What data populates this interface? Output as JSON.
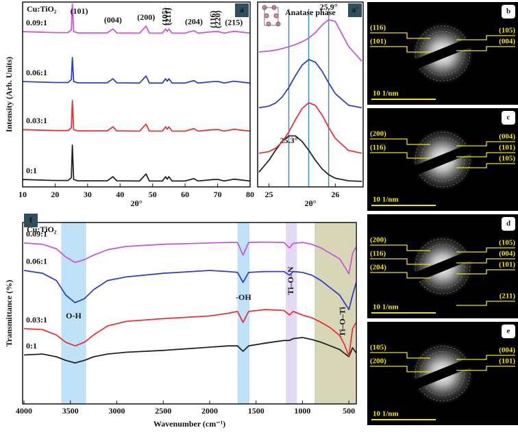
{
  "chart_data": [
    {
      "type": "line",
      "panel_label": "a",
      "header": "Cu:TiO₂",
      "xlabel": "2θ°",
      "ylabel": "Intensity (Arb. Units)",
      "x": [
        10,
        20,
        24,
        25,
        25.3,
        25.7,
        27,
        30,
        36,
        37.8,
        39,
        46,
        48,
        49,
        53,
        54,
        54.5,
        55,
        56,
        60,
        62.7,
        64,
        68.8,
        70.3,
        72,
        75,
        80
      ],
      "xlim": [
        10,
        80
      ],
      "ylim": [
        0,
        100
      ],
      "xticks": [
        10,
        20,
        30,
        40,
        50,
        60,
        70,
        80
      ],
      "series_labels": true,
      "series": [
        {
          "name": "0:1",
          "color": "#222222",
          "values": [
            4,
            3.5,
            3.5,
            5,
            22.6,
            4,
            3.3,
            3.3,
            3.3,
            5.5,
            3.3,
            3.2,
            7,
            3.2,
            3.2,
            5.5,
            4.2,
            5.5,
            3.2,
            3.2,
            4.5,
            3.2,
            4,
            4,
            3.2,
            4.2,
            3.2
          ]
        },
        {
          "name": "0.03:1",
          "color": "#e8313a",
          "values": [
            31,
            30.5,
            30.5,
            32,
            46.7,
            31,
            30.3,
            30.3,
            30.3,
            32.5,
            30.3,
            30.2,
            34,
            30.2,
            30.2,
            32.5,
            31.2,
            32.5,
            30.2,
            30.2,
            31.5,
            30.2,
            31,
            31,
            30.2,
            31.2,
            30.2
          ]
        },
        {
          "name": "0.06:1",
          "color": "#2e3fc8",
          "values": [
            57,
            56.5,
            56.5,
            58,
            70,
            57,
            56.3,
            56.3,
            56.3,
            58.5,
            56.3,
            56.2,
            60,
            56.2,
            56.2,
            58.5,
            57.2,
            58.5,
            56.2,
            56.2,
            57.5,
            56.2,
            57,
            57,
            56.2,
            57.2,
            56.2
          ]
        },
        {
          "name": "0.09:1",
          "color": "#c757d6",
          "values": [
            84,
            83.5,
            83.5,
            85,
            99,
            84,
            83.3,
            83.3,
            83.3,
            85.5,
            83.3,
            83.2,
            87,
            83.2,
            83.2,
            85.5,
            84.2,
            85.5,
            83.2,
            83.2,
            84.5,
            83.2,
            84,
            84,
            83.2,
            84.2,
            83.2
          ]
        }
      ],
      "annotations": [
        {
          "text": "(101)",
          "x": 25.3,
          "vertical": false
        },
        {
          "text": "(004)",
          "x": 37.8,
          "vertical": false
        },
        {
          "text": "(200)",
          "x": 48,
          "vertical": false
        },
        {
          "text": "(105)",
          "x": 54,
          "vertical": true
        },
        {
          "text": "(211)",
          "x": 55,
          "vertical": true
        },
        {
          "text": "(204)",
          "x": 62.7,
          "vertical": false
        },
        {
          "text": "(116)",
          "x": 68.8,
          "vertical": true
        },
        {
          "text": "(220)",
          "x": 70.3,
          "vertical": true
        },
        {
          "text": "(215)",
          "x": 75,
          "vertical": false
        }
      ]
    },
    {
      "type": "line",
      "panel_label": "a'",
      "xlabel": "2θ°",
      "inset_label": "Anatase phase",
      "x": [
        24.85,
        25.0,
        25.1,
        25.2,
        25.3,
        25.4,
        25.5,
        25.6,
        25.7,
        25.8,
        25.9,
        26.0,
        26.2,
        26.4
      ],
      "xlim": [
        24.83,
        26.42
      ],
      "ylim": [
        0,
        100
      ],
      "xticks": [
        25,
        26
      ],
      "series_labels": false,
      "reference_lines": [
        25.3,
        25.6,
        25.9
      ],
      "reference_line_labels": [
        "25.3°",
        null,
        "25.9°"
      ],
      "reference_color": "#3b8fd0",
      "series": [
        {
          "name": "0:1",
          "color": "#222222",
          "values": [
            8,
            14.4,
            19.8,
            24.6,
            27.6,
            27.6,
            24.6,
            19.8,
            14.4,
            9.8,
            6.6,
            4.7,
            3.3,
            3
          ]
        },
        {
          "name": "0.03:1",
          "color": "#e8313a",
          "values": [
            18.2,
            19.1,
            20.9,
            24.3,
            29.7,
            36.4,
            42.4,
            45.5,
            44.1,
            39,
            32.3,
            26.3,
            19.7,
            18.2
          ]
        },
        {
          "name": "0.06:1",
          "color": "#2e3fc8",
          "values": [
            42.8,
            43.7,
            45.4,
            48.6,
            53.8,
            60.2,
            65.9,
            68.9,
            67.5,
            62.7,
            56.3,
            50.5,
            44.2,
            42.8
          ]
        },
        {
          "name": "0.09:1",
          "color": "#c757d6",
          "values": [
            73,
            73.5,
            74,
            74.8,
            75.8,
            77,
            78.5,
            80.5,
            83.5,
            87.5,
            90.5,
            89.5,
            76,
            68
          ]
        }
      ]
    },
    {
      "type": "line",
      "panel_label": "f",
      "header": "Cu:TiO₂",
      "xlabel": "Wavenumber (cm⁻¹)",
      "ylabel": "Transmittance (%)",
      "x": [
        4000,
        3800,
        3650,
        3550,
        3450,
        3350,
        3250,
        3100,
        2900,
        2500,
        2000,
        1800,
        1700,
        1640,
        1580,
        1400,
        1200,
        1140,
        1100,
        1000,
        900,
        800,
        700,
        600,
        550,
        500,
        460,
        420
      ],
      "xlim": [
        4015,
        420
      ],
      "ylim": [
        0,
        100
      ],
      "xticks": [
        4000,
        3500,
        3000,
        2500,
        2000,
        1500,
        1000,
        500
      ],
      "series_labels": true,
      "bands": [
        {
          "range": [
            3600,
            3330
          ],
          "label": "O-H",
          "color": "#a9d8f5"
        },
        {
          "range": [
            1700,
            1570
          ],
          "label": "-OH",
          "color": "#a9d8f5"
        },
        {
          "range": [
            1180,
            1060
          ],
          "label": "Ti–O–N",
          "color": "#dccdf0"
        },
        {
          "range": [
            870,
            430
          ],
          "label": "Ti–O–Ti",
          "color": "#c9c9a0"
        }
      ],
      "series": [
        {
          "name": "0:1",
          "color": "#222222",
          "values": [
            27,
            27.5,
            26,
            24,
            22.6,
            24,
            26,
            27.5,
            28.5,
            29.5,
            31.3,
            32,
            32,
            29,
            32,
            33.5,
            35,
            35,
            36,
            36.6,
            35.5,
            34,
            32,
            30,
            28,
            26,
            31,
            28
          ]
        },
        {
          "name": "0.03:1",
          "color": "#e8313a",
          "values": [
            41.5,
            41,
            38,
            34,
            32,
            34,
            38,
            43,
            45.5,
            47,
            48.5,
            50,
            51,
            45,
            51,
            52,
            51.5,
            49,
            51,
            49,
            47.5,
            45,
            42,
            37.7,
            33,
            26.4,
            41.5,
            45
          ]
        },
        {
          "name": "0.06:1",
          "color": "#2e3fc8",
          "values": [
            73.6,
            72,
            68,
            60,
            55.8,
            58,
            63,
            68,
            70,
            72,
            73.6,
            73,
            72.5,
            67,
            72.5,
            73,
            73,
            71,
            73,
            72.5,
            71,
            68,
            64,
            60,
            56,
            52,
            60,
            67
          ]
        },
        {
          "name": "0.09:1",
          "color": "#c757d6",
          "values": [
            88.7,
            88,
            85.5,
            81,
            78,
            79.5,
            82,
            85,
            86.8,
            88,
            88.7,
            89,
            89,
            82,
            89,
            89.2,
            89,
            86,
            88.5,
            89,
            88,
            86,
            83,
            80,
            76,
            71.7,
            83,
            86.8
          ]
        }
      ]
    }
  ],
  "saed_panels": [
    {
      "label": "b",
      "left": [
        "(116)",
        "(101)"
      ],
      "right": [
        "(105)",
        "(004)"
      ],
      "scale": "10 1/nm"
    },
    {
      "label": "c",
      "left": [
        "(200)",
        "(116)"
      ],
      "right": [
        "(004)",
        "(101)",
        "(105)"
      ],
      "scale": "10 1/nm"
    },
    {
      "label": "d",
      "left": [
        "(200)",
        "(116)",
        "(204)"
      ],
      "right": [
        "(105)",
        "(004)",
        "(101)",
        "(211)"
      ],
      "scale": "10 1/nm"
    },
    {
      "label": "e",
      "left": [
        "(105)",
        "(200)"
      ],
      "right": [
        "(004)",
        "(101)"
      ],
      "scale": "10 1/nm"
    }
  ]
}
